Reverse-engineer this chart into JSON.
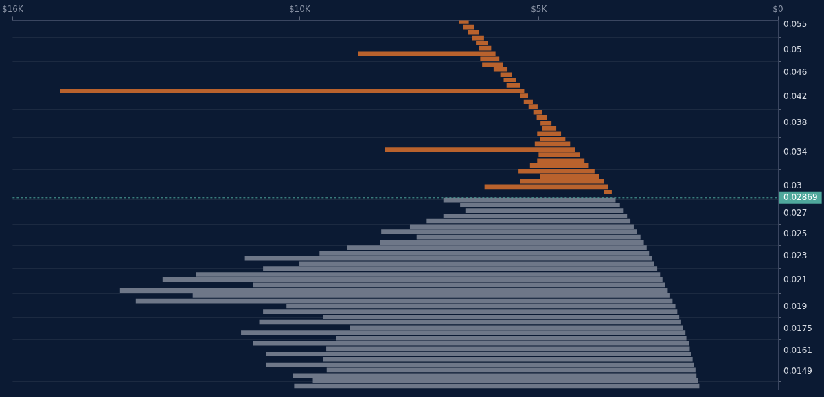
{
  "chart_data": {
    "type": "bar",
    "orientation": "horizontal",
    "log": "y",
    "grid": "y",
    "legend": false,
    "xlim": [
      16000,
      0
    ],
    "xticks": [
      {
        "value": 16000,
        "label": "$16K"
      },
      {
        "value": 10000,
        "label": "$10K"
      },
      {
        "value": 5000,
        "label": "$5K"
      },
      {
        "value": 0,
        "label": "$0"
      }
    ],
    "ylim": [
      0.0139,
      0.056
    ],
    "yticks": [
      0.0149,
      0.0161,
      0.0175,
      0.019,
      0.021,
      0.023,
      0.025,
      0.027,
      0.03,
      0.034,
      0.038,
      0.042,
      0.046,
      0.05,
      0.055
    ],
    "ref_lines": [
      {
        "axis": "y",
        "value": 0.02869,
        "label": "0.02869",
        "color": "#4fa89c",
        "line_style": "dashed"
      }
    ],
    "series": [
      {
        "color": "#b9622d",
        "x": [
          0.0557,
          0.0546,
          0.0535,
          0.0524,
          0.0514,
          0.0504,
          0.0494,
          0.0484,
          0.0474,
          0.0465,
          0.0456,
          0.0447,
          0.0438,
          0.0429,
          0.0421,
          0.0412,
          0.0404,
          0.0396,
          0.0388,
          0.038,
          0.0373,
          0.0365,
          0.0358,
          0.0351,
          0.0344,
          0.0337,
          0.033,
          0.0324,
          0.0317,
          0.0311,
          0.0305,
          0.0299,
          0.0293
        ],
        "base": [
          6470,
          6360,
          6250,
          6150,
          6070,
          6000,
          5910,
          5830,
          5750,
          5660,
          5560,
          5480,
          5400,
          5310,
          5230,
          5130,
          5030,
          4940,
          4840,
          4740,
          4640,
          4540,
          4450,
          4350,
          4250,
          4150,
          4050,
          3960,
          3840,
          3750,
          3650,
          3560,
          3480
        ],
        "values": [
          200,
          210,
          220,
          240,
          240,
          250,
          2870,
          390,
          430,
          280,
          240,
          250,
          270,
          9690,
          150,
          180,
          180,
          170,
          200,
          220,
          290,
          490,
          520,
          730,
          3970,
          850,
          980,
          1220,
          1580,
          1220,
          1730,
          2570,
          150
        ]
      },
      {
        "color": "#6e7788",
        "x": [
          0.02845,
          0.02789,
          0.02733,
          0.02679,
          0.02626,
          0.02574,
          0.02523,
          0.02473,
          0.02424,
          0.02376,
          0.02329,
          0.02282,
          0.02237,
          0.02193,
          0.02149,
          0.02107,
          0.02065,
          0.02024,
          0.01984,
          0.01944,
          0.01906,
          0.01868,
          0.01831,
          0.01795,
          0.01759,
          0.01724,
          0.0169,
          0.01656,
          0.01623,
          0.01591,
          0.0156,
          0.01529,
          0.01498,
          0.01468,
          0.01439,
          0.01411
        ],
        "base": [
          3400,
          3310,
          3230,
          3160,
          3090,
          3020,
          2950,
          2880,
          2810,
          2750,
          2700,
          2640,
          2590,
          2530,
          2470,
          2420,
          2360,
          2310,
          2260,
          2210,
          2150,
          2110,
          2070,
          2030,
          1990,
          1940,
          1920,
          1870,
          1850,
          1820,
          1790,
          1760,
          1730,
          1710,
          1680,
          1650
        ],
        "values": [
          3590,
          3330,
          3300,
          3830,
          4250,
          4670,
          5340,
          4670,
          5510,
          6260,
          6880,
          8500,
          7410,
          8230,
          9690,
          10440,
          8610,
          11440,
          9970,
          11210,
          8120,
          8650,
          7440,
          8810,
          6960,
          9280,
          7310,
          9100,
          7590,
          8880,
          7720,
          8930,
          7700,
          8430,
          8040,
          8460
        ]
      }
    ]
  }
}
